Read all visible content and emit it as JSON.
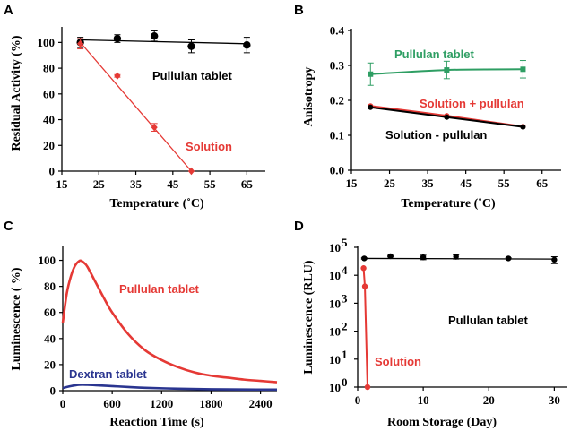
{
  "chart_data": [
    {
      "panel": "A",
      "type": "scatter",
      "xlabel": "Temperature (˚C)",
      "ylabel": "Residual Activity (%)",
      "xlim": [
        15,
        70
      ],
      "ylim": [
        0,
        110
      ],
      "xticks": [
        "15",
        "25",
        "35",
        "45",
        "55",
        "65"
      ],
      "yticks": [
        "0",
        "20",
        "40",
        "60",
        "80",
        "100"
      ],
      "series": [
        {
          "name": "Pullulan tablet",
          "color": "#000000",
          "marker": "circle",
          "x": [
            20,
            30,
            40,
            50,
            65
          ],
          "y": [
            100,
            103,
            105,
            97,
            98
          ],
          "err": [
            4,
            3,
            4,
            5,
            6
          ],
          "fit": [
            [
              20,
              102
            ],
            [
              65,
              99
            ]
          ]
        },
        {
          "name": "Solution",
          "color": "#e53935",
          "marker": "diamond",
          "x": [
            20,
            30,
            40,
            50
          ],
          "y": [
            99,
            74,
            34,
            0
          ],
          "err": [
            4,
            1,
            3,
            0
          ],
          "fit": [
            [
              20,
              100
            ],
            [
              50,
              0
            ]
          ]
        }
      ]
    },
    {
      "panel": "B",
      "type": "line",
      "xlabel": "Temperature (˚C)",
      "ylabel": "Anisotropy",
      "xlim": [
        15,
        70
      ],
      "ylim": [
        0,
        0.4
      ],
      "xticks": [
        "15",
        "25",
        "35",
        "45",
        "55",
        "65"
      ],
      "yticks": [
        "0.0",
        "0.1",
        "0.2",
        "0.3",
        "0.4"
      ],
      "series": [
        {
          "name": "Pullulan tablet",
          "color": "#2e9e63",
          "marker": "square",
          "x": [
            20,
            40,
            60
          ],
          "y": [
            0.275,
            0.287,
            0.289
          ],
          "err": [
            0.032,
            0.025,
            0.025
          ]
        },
        {
          "name": "Solution + pullulan",
          "color": "#e53935",
          "marker": "circle",
          "x": [
            20,
            40,
            60
          ],
          "y": [
            0.184,
            0.156,
            0.125
          ],
          "err": [
            0,
            0,
            0
          ]
        },
        {
          "name": "Solution - pullulan",
          "color": "#000000",
          "marker": "circle",
          "x": [
            20,
            40,
            60
          ],
          "y": [
            0.18,
            0.152,
            0.124
          ],
          "err": [
            0,
            0,
            0
          ]
        }
      ]
    },
    {
      "panel": "C",
      "type": "line",
      "xlabel": "Reaction Time (s)",
      "ylabel": "Luminescence ( %)",
      "xlim": [
        0,
        2600
      ],
      "ylim": [
        0,
        110
      ],
      "xticks": [
        "0",
        "600",
        "1200",
        "1800",
        "2400"
      ],
      "yticks": [
        "0",
        "20",
        "40",
        "60",
        "80",
        "100"
      ],
      "series": [
        {
          "name": "Pullulan tablet",
          "color": "#e53935",
          "x": [
            0,
            50,
            100,
            150,
            200,
            230,
            260,
            300,
            400,
            500,
            600,
            800,
            1000,
            1200,
            1400,
            1600,
            1800,
            2000,
            2200,
            2400,
            2600
          ],
          "y": [
            52,
            75,
            88,
            96,
            99.5,
            99.5,
            98,
            95,
            83,
            71,
            60,
            43,
            31,
            23.5,
            18,
            14,
            11.5,
            10,
            8.5,
            7.5,
            6.5
          ]
        },
        {
          "name": "Dextran tablet",
          "color": "#2a3590",
          "x": [
            0,
            100,
            200,
            300,
            400,
            600,
            800,
            1000,
            1400,
            1800,
            2200,
            2600
          ],
          "y": [
            2,
            3.5,
            4.5,
            4.5,
            4.2,
            3.5,
            2.8,
            2.2,
            1.5,
            1.1,
            0.9,
            0.8
          ]
        }
      ]
    },
    {
      "panel": "D",
      "type": "scatter",
      "xlabel": "Room Storage (Day)",
      "ylabel": "Luminescence (RLU)",
      "yscale": "log",
      "xlim": [
        0,
        32
      ],
      "ylim": [
        1,
        100000
      ],
      "xticks": [
        "0",
        "10",
        "20",
        "30"
      ],
      "yticks": [
        {
          "base": "10",
          "exp": "0"
        },
        {
          "base": "10",
          "exp": "1"
        },
        {
          "base": "10",
          "exp": "2"
        },
        {
          "base": "10",
          "exp": "3"
        },
        {
          "base": "10",
          "exp": "4"
        },
        {
          "base": "10",
          "exp": "5"
        }
      ],
      "series": [
        {
          "name": "Pullulan tablet",
          "color": "#000000",
          "marker": "circle",
          "x": [
            1,
            5,
            10,
            15,
            23,
            30
          ],
          "y": [
            40000,
            48000,
            44000,
            46000,
            40000,
            36000
          ],
          "err": [
            [
              38000,
              42000
            ],
            [
              45000,
              51000
            ],
            [
              36000,
              52000
            ],
            [
              38000,
              54000
            ],
            [
              38000,
              42000
            ],
            [
              26000,
              46000
            ]
          ],
          "fit": [
            [
              1,
              40000
            ],
            [
              30,
              38000
            ]
          ]
        },
        {
          "name": "Solution",
          "color": "#e53935",
          "marker": "circle",
          "x": [
            0.9,
            1.1,
            1.5
          ],
          "y": [
            18000,
            4000,
            1
          ],
          "err": [
            [
              18000,
              18000
            ],
            [
              4000,
              4000
            ],
            [
              1,
              1
            ]
          ]
        }
      ]
    }
  ],
  "annotations": {
    "a_pullulan": "Pullulan tablet",
    "a_solution": "Solution",
    "b_pullulan": "Pullulan tablet",
    "b_sol_plus": "Solution + pullulan",
    "b_sol_minus": "Solution - pullulan",
    "c_pullulan": "Pullulan tablet",
    "c_dextran": "Dextran tablet",
    "d_pullulan": "Pullulan tablet",
    "d_solution": "Solution"
  },
  "colors": {
    "black": "#000000",
    "red": "#e53935",
    "green": "#2e9e63",
    "blue": "#2a3590"
  }
}
